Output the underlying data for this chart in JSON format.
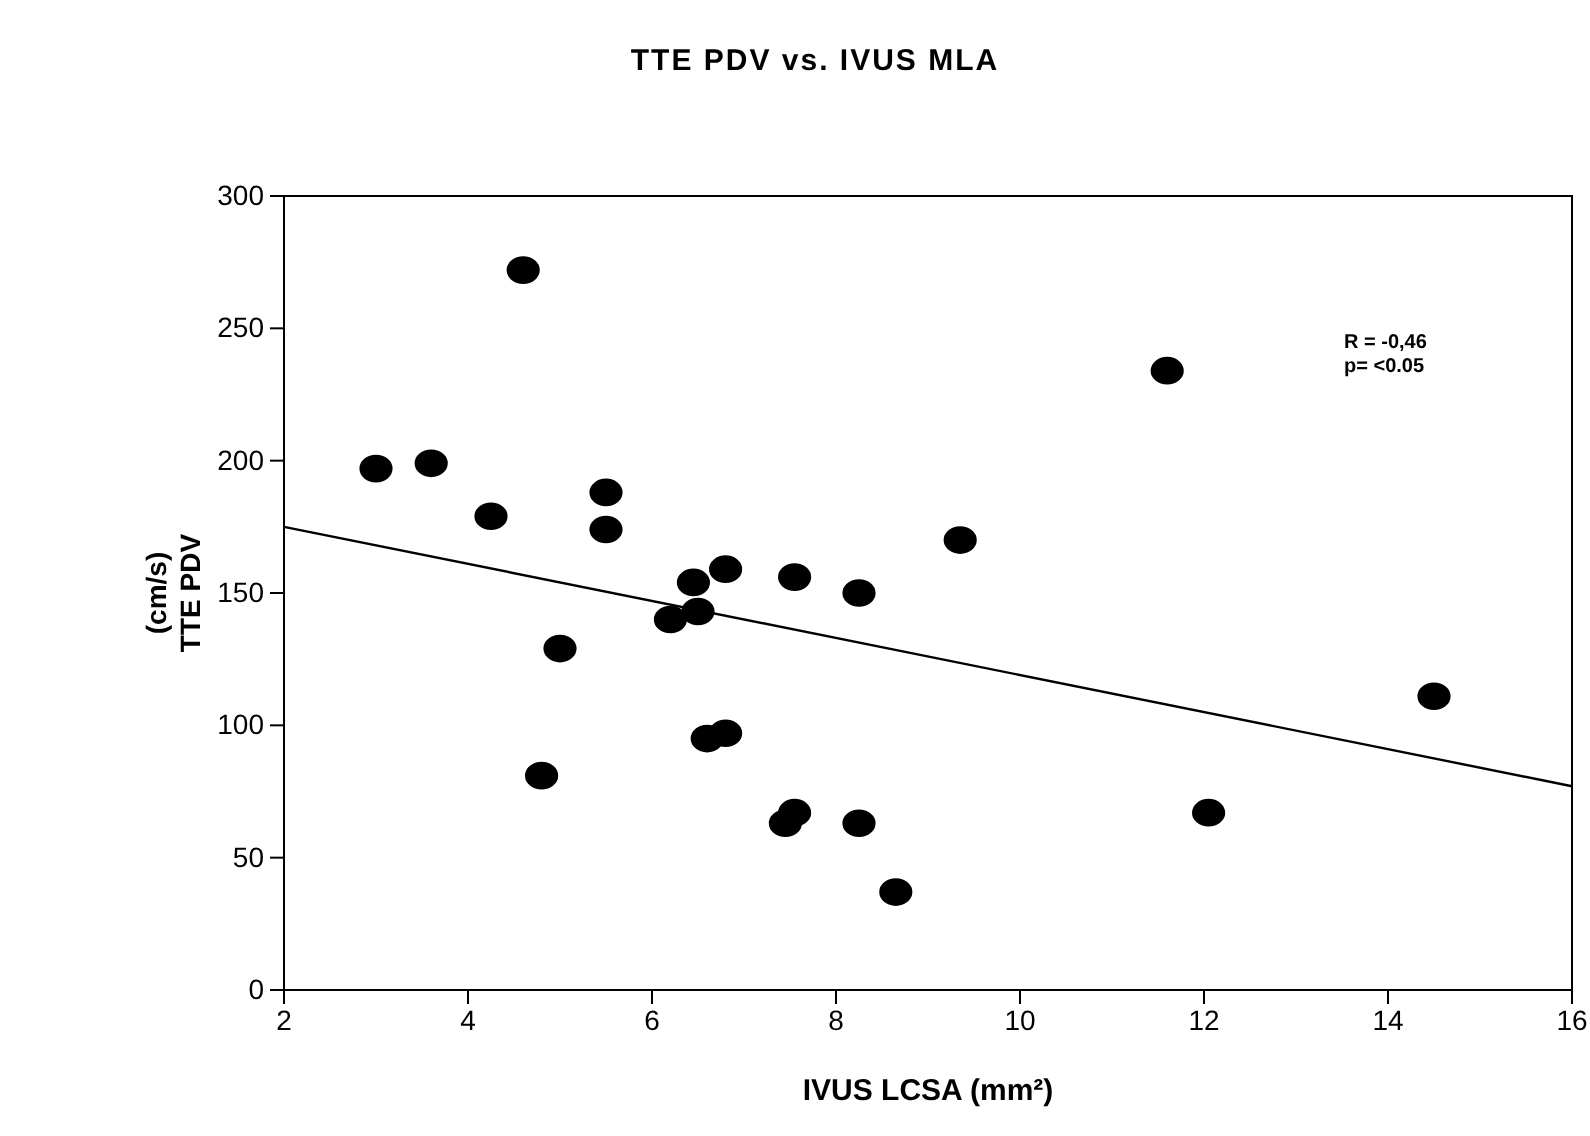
{
  "chart_data": {
    "type": "scatter",
    "title": "TTE PDV vs. IVUS MLA",
    "xlabel": "IVUS LCSA (mm²)",
    "ylabel": "TTE PDV (cm/s)",
    "xlim": [
      2,
      16
    ],
    "xticks": [
      2,
      4,
      6,
      8,
      10,
      12,
      14,
      16
    ],
    "ylim": [
      0,
      300
    ],
    "yticks": [
      0,
      50,
      100,
      150,
      200,
      250,
      300
    ],
    "grid": false,
    "annotations": [
      "R = -0,46",
      "p= <0.05"
    ],
    "series": [
      {
        "marker": "circle",
        "color": "#000000",
        "x": [
          3.0,
          3.6,
          4.25,
          4.6,
          5.0,
          4.8,
          5.5,
          5.5,
          6.2,
          6.45,
          6.5,
          6.6,
          6.8,
          6.8,
          7.45,
          7.55,
          7.55,
          8.25,
          8.25,
          8.65,
          9.35,
          11.6,
          12.05,
          14.5
        ],
        "values": [
          197,
          199,
          179,
          272,
          129,
          81,
          188,
          174,
          140,
          154,
          143,
          95,
          97,
          159,
          63,
          67,
          156,
          150,
          63,
          37,
          170,
          234,
          67,
          111
        ]
      },
      {
        "type": "line",
        "color": "#000000",
        "x": [
          2,
          16
        ],
        "values": [
          175,
          77
        ]
      }
    ]
  }
}
